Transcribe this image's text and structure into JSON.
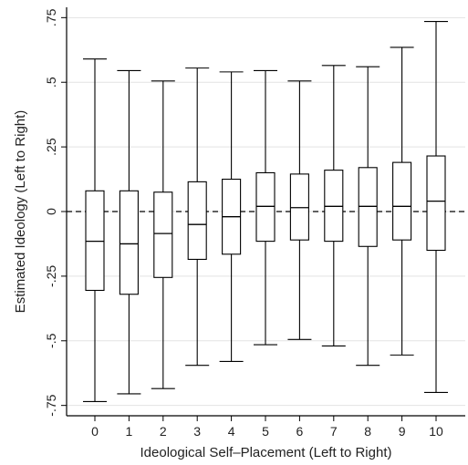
{
  "chart_data": {
    "type": "boxplot",
    "xlabel": "Ideological Self–Placement (Left to Right)",
    "ylabel": "Estimated Ideology (Left to Right)",
    "x_tick_labels": [
      "0",
      "1",
      "2",
      "3",
      "4",
      "5",
      "6",
      "7",
      "8",
      "9",
      "10"
    ],
    "y_tick_labels": [
      "-.75",
      "-.5",
      "-.25",
      "0",
      ".25",
      ".5",
      ".75"
    ],
    "y_tick_values": [
      -0.75,
      -0.5,
      -0.25,
      0,
      0.25,
      0.5,
      0.75
    ],
    "ylim": [
      -0.79,
      0.79
    ],
    "grid": "horizontal",
    "reference_line": {
      "y": 0,
      "style": "dashed"
    },
    "boxes": [
      {
        "x": "0",
        "whisker_low": -0.735,
        "q1": -0.305,
        "median": -0.115,
        "q3": 0.08,
        "whisker_high": 0.59
      },
      {
        "x": "1",
        "whisker_low": -0.705,
        "q1": -0.32,
        "median": -0.125,
        "q3": 0.08,
        "whisker_high": 0.545
      },
      {
        "x": "2",
        "whisker_low": -0.685,
        "q1": -0.255,
        "median": -0.085,
        "q3": 0.075,
        "whisker_high": 0.505
      },
      {
        "x": "3",
        "whisker_low": -0.595,
        "q1": -0.185,
        "median": -0.05,
        "q3": 0.115,
        "whisker_high": 0.555
      },
      {
        "x": "4",
        "whisker_low": -0.58,
        "q1": -0.165,
        "median": -0.02,
        "q3": 0.125,
        "whisker_high": 0.54
      },
      {
        "x": "5",
        "whisker_low": -0.515,
        "q1": -0.115,
        "median": 0.02,
        "q3": 0.15,
        "whisker_high": 0.545
      },
      {
        "x": "6",
        "whisker_low": -0.495,
        "q1": -0.11,
        "median": 0.015,
        "q3": 0.145,
        "whisker_high": 0.505
      },
      {
        "x": "7",
        "whisker_low": -0.52,
        "q1": -0.115,
        "median": 0.02,
        "q3": 0.16,
        "whisker_high": 0.565
      },
      {
        "x": "8",
        "whisker_low": -0.595,
        "q1": -0.135,
        "median": 0.02,
        "q3": 0.17,
        "whisker_high": 0.56
      },
      {
        "x": "9",
        "whisker_low": -0.555,
        "q1": -0.11,
        "median": 0.02,
        "q3": 0.19,
        "whisker_high": 0.635
      },
      {
        "x": "10",
        "whisker_low": -0.7,
        "q1": -0.15,
        "median": 0.04,
        "q3": 0.215,
        "whisker_high": 0.735
      }
    ]
  }
}
